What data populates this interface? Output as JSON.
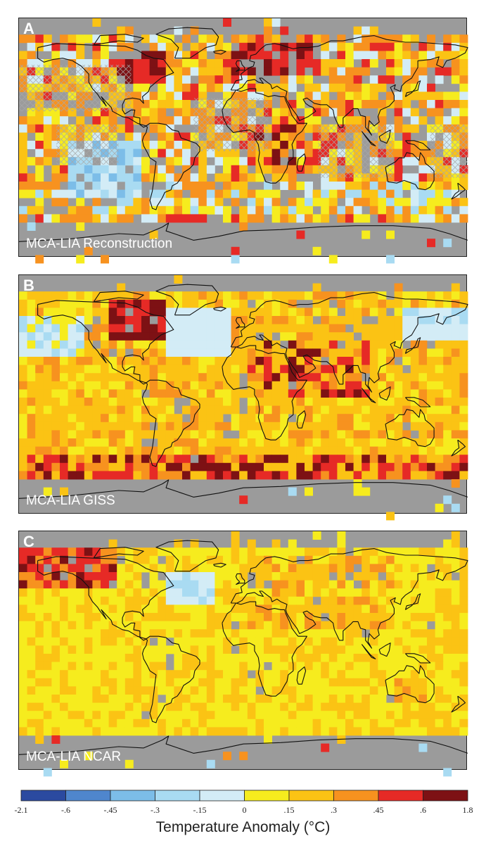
{
  "panels": [
    {
      "letter": "A",
      "title": "MCA-LIA Reconstruction",
      "seed": 11,
      "style": "recon"
    },
    {
      "letter": "B",
      "title": "MCA-LIA GISS",
      "seed": 23,
      "style": "giss"
    },
    {
      "letter": "C",
      "title": "MCA-LIA NCAR",
      "seed": 37,
      "style": "ncar"
    }
  ],
  "colorbar": {
    "title": "Temperature Anomaly (°C)",
    "ticks": [
      "-2.1",
      "-.6",
      "-.45",
      "-.3",
      "-.15",
      "0",
      ".15",
      ".3",
      ".45",
      ".6",
      "1.8"
    ],
    "colors": [
      "#2b4aa0",
      "#4f86cd",
      "#7cbde8",
      "#a9dbf2",
      "#d3ecf6",
      "#f6ec1e",
      "#fbc314",
      "#f7921f",
      "#e62a26",
      "#7d1114"
    ]
  },
  "colors": {
    "missing": "#9b9b9b",
    "coast": "#111111"
  }
}
